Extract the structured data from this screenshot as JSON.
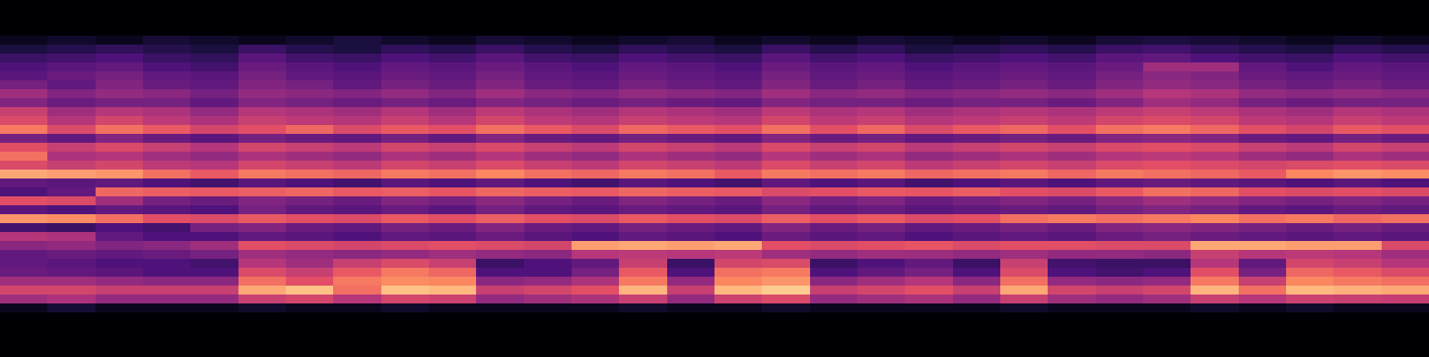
{
  "chart_data": {
    "type": "heatmap",
    "tick_labels": false,
    "zlim": [
      0,
      100
    ],
    "cells": [
      [
        0,
        0,
        0,
        0,
        0,
        0,
        0,
        0,
        0,
        0,
        0,
        0,
        0,
        0,
        0,
        0,
        0,
        0,
        0,
        0,
        0,
        0,
        0,
        0,
        0,
        0,
        0,
        0,
        0,
        0
      ],
      [
        0,
        0,
        0,
        0,
        0,
        0,
        0,
        0,
        0,
        0,
        0,
        0,
        0,
        0,
        0,
        0,
        0,
        0,
        0,
        0,
        0,
        0,
        0,
        0,
        0,
        0,
        0,
        0,
        0,
        0
      ],
      [
        0,
        0,
        0,
        0,
        0,
        0,
        0,
        0,
        0,
        0,
        0,
        0,
        0,
        0,
        0,
        0,
        0,
        0,
        0,
        0,
        0,
        0,
        0,
        0,
        0,
        0,
        0,
        0,
        0,
        0
      ],
      [
        0,
        0,
        0,
        0,
        0,
        0,
        0,
        0,
        0,
        0,
        0,
        0,
        0,
        0,
        0,
        0,
        0,
        0,
        0,
        0,
        0,
        0,
        0,
        0,
        0,
        0,
        0,
        0,
        0,
        0
      ],
      [
        5,
        8,
        5,
        10,
        8,
        5,
        8,
        12,
        8,
        5,
        10,
        8,
        5,
        8,
        10,
        5,
        8,
        5,
        10,
        8,
        5,
        8,
        5,
        10,
        12,
        10,
        8,
        5,
        8,
        5
      ],
      [
        12,
        15,
        18,
        15,
        12,
        20,
        15,
        12,
        18,
        15,
        20,
        15,
        12,
        18,
        15,
        12,
        20,
        15,
        18,
        12,
        15,
        18,
        15,
        20,
        22,
        18,
        15,
        12,
        18,
        15
      ],
      [
        20,
        22,
        25,
        20,
        18,
        28,
        22,
        20,
        25,
        22,
        28,
        22,
        20,
        25,
        22,
        20,
        28,
        22,
        25,
        20,
        22,
        25,
        22,
        28,
        30,
        25,
        22,
        20,
        25,
        22
      ],
      [
        25,
        28,
        30,
        25,
        22,
        32,
        28,
        25,
        30,
        28,
        32,
        28,
        25,
        30,
        28,
        25,
        32,
        28,
        30,
        25,
        28,
        30,
        28,
        32,
        45,
        45,
        30,
        25,
        30,
        28
      ],
      [
        28,
        32,
        35,
        30,
        28,
        35,
        30,
        28,
        32,
        30,
        35,
        30,
        28,
        32,
        30,
        28,
        35,
        30,
        32,
        28,
        30,
        32,
        30,
        35,
        40,
        38,
        32,
        30,
        32,
        30
      ],
      [
        35,
        30,
        38,
        32,
        30,
        38,
        35,
        30,
        35,
        32,
        38,
        32,
        30,
        35,
        32,
        30,
        38,
        32,
        35,
        30,
        32,
        35,
        32,
        38,
        42,
        40,
        35,
        32,
        35,
        32
      ],
      [
        45,
        38,
        42,
        40,
        35,
        42,
        40,
        38,
        42,
        38,
        45,
        40,
        38,
        42,
        40,
        38,
        45,
        40,
        42,
        38,
        40,
        42,
        40,
        45,
        50,
        48,
        42,
        40,
        42,
        40
      ],
      [
        38,
        32,
        35,
        35,
        30,
        38,
        35,
        32,
        35,
        32,
        38,
        35,
        32,
        35,
        32,
        30,
        38,
        35,
        35,
        32,
        35,
        35,
        32,
        38,
        45,
        42,
        35,
        32,
        35,
        35
      ],
      [
        55,
        45,
        50,
        48,
        42,
        50,
        48,
        45,
        50,
        45,
        52,
        48,
        45,
        50,
        48,
        45,
        52,
        48,
        50,
        45,
        48,
        50,
        48,
        52,
        55,
        52,
        48,
        45,
        50,
        48
      ],
      [
        60,
        50,
        58,
        52,
        48,
        55,
        52,
        50,
        55,
        50,
        58,
        52,
        50,
        55,
        52,
        50,
        58,
        52,
        55,
        50,
        52,
        55,
        52,
        58,
        60,
        58,
        52,
        50,
        55,
        52
      ],
      [
        72,
        60,
        70,
        65,
        58,
        62,
        68,
        60,
        65,
        62,
        70,
        65,
        60,
        68,
        65,
        62,
        70,
        62,
        68,
        60,
        65,
        68,
        62,
        70,
        72,
        68,
        62,
        58,
        65,
        62
      ],
      [
        35,
        30,
        38,
        32,
        28,
        35,
        32,
        30,
        35,
        30,
        38,
        32,
        30,
        35,
        32,
        30,
        38,
        32,
        35,
        30,
        32,
        35,
        32,
        38,
        40,
        38,
        32,
        30,
        35,
        32
      ],
      [
        62,
        55,
        60,
        55,
        50,
        58,
        55,
        52,
        58,
        55,
        60,
        55,
        52,
        58,
        55,
        52,
        60,
        55,
        58,
        52,
        55,
        58,
        55,
        60,
        62,
        60,
        55,
        52,
        58,
        55
      ],
      [
        70,
        48,
        50,
        45,
        42,
        48,
        45,
        42,
        48,
        45,
        50,
        45,
        42,
        48,
        45,
        42,
        50,
        45,
        48,
        42,
        45,
        48,
        45,
        50,
        52,
        50,
        45,
        42,
        48,
        45
      ],
      [
        60,
        55,
        58,
        52,
        50,
        58,
        55,
        52,
        58,
        55,
        60,
        55,
        52,
        58,
        55,
        52,
        60,
        55,
        58,
        52,
        55,
        58,
        55,
        60,
        62,
        60,
        58,
        60,
        62,
        60
      ],
      [
        82,
        80,
        78,
        70,
        65,
        72,
        70,
        68,
        72,
        70,
        75,
        70,
        68,
        72,
        70,
        65,
        72,
        70,
        72,
        68,
        70,
        72,
        68,
        72,
        70,
        68,
        65,
        75,
        78,
        76
      ],
      [
        30,
        28,
        30,
        25,
        22,
        28,
        25,
        22,
        28,
        25,
        30,
        25,
        22,
        28,
        25,
        22,
        30,
        25,
        28,
        22,
        25,
        28,
        25,
        30,
        32,
        30,
        28,
        25,
        28,
        25
      ],
      [
        25,
        30,
        68,
        66,
        65,
        66,
        68,
        65,
        66,
        64,
        68,
        66,
        65,
        68,
        66,
        65,
        60,
        62,
        65,
        64,
        66,
        62,
        60,
        65,
        70,
        68,
        62,
        60,
        62,
        60
      ],
      [
        62,
        60,
        45,
        35,
        32,
        38,
        35,
        32,
        38,
        35,
        40,
        35,
        32,
        38,
        35,
        32,
        40,
        35,
        38,
        32,
        35,
        38,
        35,
        40,
        45,
        42,
        38,
        35,
        38,
        35
      ],
      [
        28,
        25,
        30,
        28,
        25,
        35,
        30,
        28,
        32,
        28,
        35,
        30,
        28,
        32,
        30,
        28,
        35,
        30,
        32,
        28,
        30,
        32,
        30,
        35,
        38,
        35,
        30,
        28,
        32,
        30
      ],
      [
        78,
        76,
        70,
        62,
        60,
        65,
        62,
        60,
        65,
        62,
        66,
        62,
        60,
        65,
        62,
        60,
        66,
        62,
        65,
        60,
        62,
        70,
        72,
        70,
        72,
        75,
        70,
        72,
        68,
        70
      ],
      [
        22,
        20,
        25,
        22,
        35,
        38,
        32,
        30,
        35,
        32,
        38,
        32,
        30,
        35,
        32,
        30,
        38,
        32,
        35,
        30,
        32,
        35,
        32,
        38,
        40,
        38,
        35,
        32,
        35,
        32
      ],
      [
        50,
        48,
        30,
        25,
        25,
        30,
        28,
        25,
        30,
        28,
        32,
        28,
        25,
        30,
        28,
        25,
        32,
        28,
        30,
        25,
        28,
        30,
        28,
        32,
        35,
        32,
        30,
        28,
        30,
        28
      ],
      [
        40,
        42,
        38,
        40,
        45,
        62,
        60,
        58,
        60,
        62,
        60,
        58,
        80,
        82,
        80,
        82,
        62,
        60,
        62,
        64,
        60,
        62,
        62,
        60,
        60,
        82,
        82,
        80,
        80,
        60
      ],
      [
        30,
        32,
        30,
        32,
        35,
        45,
        42,
        40,
        42,
        45,
        42,
        40,
        50,
        52,
        50,
        52,
        45,
        42,
        45,
        44,
        42,
        45,
        42,
        42,
        40,
        55,
        50,
        52,
        50,
        45
      ],
      [
        30,
        28,
        25,
        25,
        22,
        50,
        45,
        55,
        60,
        55,
        20,
        25,
        30,
        55,
        20,
        58,
        60,
        20,
        25,
        30,
        20,
        55,
        22,
        20,
        20,
        50,
        30,
        58,
        55,
        50
      ],
      [
        32,
        30,
        28,
        25,
        25,
        60,
        55,
        65,
        72,
        68,
        25,
        25,
        35,
        65,
        25,
        70,
        72,
        25,
        30,
        35,
        25,
        60,
        25,
        22,
        25,
        62,
        35,
        68,
        65,
        60
      ],
      [
        45,
        45,
        42,
        40,
        40,
        70,
        62,
        72,
        76,
        75,
        40,
        42,
        48,
        72,
        42,
        75,
        78,
        40,
        45,
        50,
        40,
        70,
        42,
        40,
        42,
        72,
        55,
        75,
        72,
        70
      ],
      [
        58,
        58,
        55,
        55,
        55,
        82,
        88,
        70,
        88,
        86,
        55,
        58,
        62,
        85,
        55,
        86,
        90,
        55,
        58,
        62,
        55,
        82,
        58,
        55,
        58,
        85,
        70,
        86,
        84,
        82
      ],
      [
        45,
        48,
        42,
        42,
        42,
        55,
        58,
        50,
        58,
        56,
        42,
        45,
        48,
        55,
        42,
        56,
        60,
        42,
        45,
        48,
        42,
        55,
        45,
        42,
        45,
        55,
        50,
        56,
        55,
        54
      ],
      [
        5,
        10,
        5,
        5,
        5,
        8,
        5,
        5,
        8,
        5,
        5,
        5,
        5,
        8,
        5,
        5,
        8,
        5,
        5,
        5,
        5,
        8,
        5,
        5,
        5,
        8,
        5,
        8,
        5,
        5
      ],
      [
        0,
        0,
        0,
        0,
        0,
        0,
        0,
        0,
        0,
        0,
        0,
        0,
        0,
        0,
        0,
        0,
        0,
        0,
        0,
        0,
        0,
        0,
        0,
        0,
        0,
        0,
        0,
        0,
        0,
        0
      ],
      [
        0,
        0,
        0,
        0,
        0,
        0,
        0,
        0,
        0,
        0,
        0,
        0,
        0,
        0,
        0,
        0,
        0,
        0,
        0,
        0,
        0,
        0,
        0,
        0,
        0,
        0,
        0,
        0,
        0,
        0
      ],
      [
        0,
        0,
        0,
        0,
        0,
        0,
        0,
        0,
        0,
        0,
        0,
        0,
        0,
        0,
        0,
        0,
        0,
        0,
        0,
        0,
        0,
        0,
        0,
        0,
        0,
        0,
        0,
        0,
        0,
        0
      ],
      [
        0,
        0,
        0,
        0,
        0,
        0,
        0,
        0,
        0,
        0,
        0,
        0,
        0,
        0,
        0,
        0,
        0,
        0,
        0,
        0,
        0,
        0,
        0,
        0,
        0,
        0,
        0,
        0,
        0,
        0
      ],
      [
        0,
        0,
        0,
        0,
        0,
        0,
        0,
        0,
        0,
        0,
        0,
        0,
        0,
        0,
        0,
        0,
        0,
        0,
        0,
        0,
        0,
        0,
        0,
        0,
        0,
        0,
        0,
        0,
        0,
        0
      ]
    ]
  }
}
